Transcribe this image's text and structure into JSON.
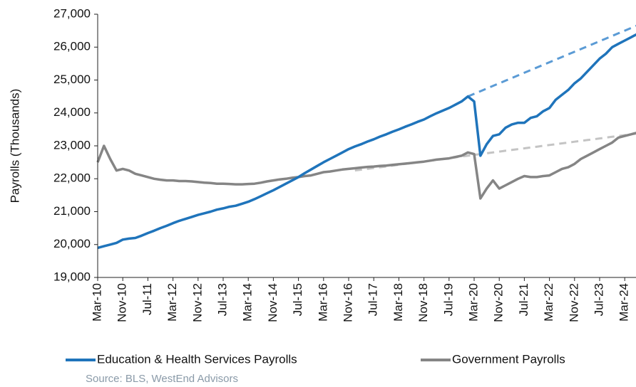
{
  "chart_data": {
    "type": "line",
    "ylabel": "Payrolls (Thousands)",
    "source": "Source: BLS, WestEnd Advisors",
    "categories": [
      "Mar-10",
      null,
      null,
      null,
      "Nov-10",
      null,
      null,
      null,
      "Jul-11",
      null,
      null,
      null,
      "Mar-12",
      null,
      null,
      null,
      "Nov-12",
      null,
      null,
      null,
      "Jul-13",
      null,
      null,
      null,
      "Mar-14",
      null,
      null,
      null,
      "Nov-14",
      null,
      null,
      null,
      "Jul-15",
      null,
      null,
      null,
      "Mar-16",
      null,
      null,
      null,
      "Nov-16",
      null,
      null,
      null,
      "Jul-17",
      null,
      null,
      null,
      "Mar-18",
      null,
      null,
      null,
      "Nov-18",
      null,
      null,
      null,
      "Jul-19",
      null,
      null,
      null,
      "Mar-20",
      null,
      null,
      null,
      "Nov-20",
      null,
      null,
      null,
      "Jul-21",
      null,
      null,
      null,
      "Mar-22",
      null,
      null,
      null,
      "Nov-22",
      null,
      null,
      null,
      "Jul-23",
      null,
      null,
      null,
      "Mar-24",
      null,
      null
    ],
    "ylim": [
      19000,
      27000
    ],
    "yticks": [
      {
        "value": 19000,
        "label": "19,000"
      },
      {
        "value": 20000,
        "label": "20,000"
      },
      {
        "value": 21000,
        "label": "21,000"
      },
      {
        "value": 22000,
        "label": "22,000"
      },
      {
        "value": 23000,
        "label": "23,000"
      },
      {
        "value": 24000,
        "label": "24,000"
      },
      {
        "value": 25000,
        "label": "25,000"
      },
      {
        "value": 26000,
        "label": "26,000"
      },
      {
        "value": 27000,
        "label": "27,000"
      }
    ],
    "grid": false,
    "legend": "bottom",
    "series": [
      {
        "name": "Education & Health Services Payrolls",
        "color": "#1f74bb",
        "values": [
          19900,
          19950,
          20000,
          20050,
          20150,
          20180,
          20200,
          20270,
          20350,
          20420,
          20500,
          20570,
          20650,
          20720,
          20780,
          20840,
          20900,
          20950,
          21000,
          21060,
          21100,
          21150,
          21180,
          21240,
          21300,
          21380,
          21470,
          21560,
          21650,
          21750,
          21850,
          21950,
          22050,
          22170,
          22280,
          22390,
          22500,
          22600,
          22700,
          22800,
          22900,
          22980,
          23050,
          23130,
          23200,
          23280,
          23350,
          23430,
          23500,
          23580,
          23650,
          23730,
          23800,
          23900,
          23990,
          24070,
          24150,
          24250,
          24350,
          24500,
          24350,
          22700,
          23050,
          23300,
          23350,
          23550,
          23650,
          23700,
          23700,
          23850,
          23900,
          24050,
          24150,
          24400,
          24550,
          24700,
          24900,
          25050,
          25250,
          25450,
          25650,
          25800,
          26000,
          26100,
          26200,
          26300,
          26400
        ]
      },
      {
        "name": "Government Payrolls",
        "color": "#858585",
        "values": [
          22500,
          23000,
          22600,
          22250,
          22300,
          22250,
          22150,
          22100,
          22050,
          22000,
          21970,
          21950,
          21950,
          21930,
          21930,
          21920,
          21900,
          21880,
          21870,
          21850,
          21850,
          21840,
          21830,
          21830,
          21840,
          21850,
          21880,
          21920,
          21950,
          21980,
          22000,
          22030,
          22050,
          22080,
          22100,
          22150,
          22200,
          22220,
          22250,
          22280,
          22300,
          22320,
          22340,
          22360,
          22370,
          22390,
          22400,
          22420,
          22440,
          22460,
          22480,
          22500,
          22520,
          22550,
          22580,
          22600,
          22620,
          22660,
          22700,
          22800,
          22750,
          21400,
          21700,
          21950,
          21700,
          21800,
          21900,
          22000,
          22080,
          22050,
          22050,
          22080,
          22100,
          22200,
          22300,
          22350,
          22450,
          22600,
          22700,
          22800,
          22900,
          23000,
          23100,
          23250,
          23300,
          23350,
          23400
        ]
      },
      {
        "color": "#5b9bd5",
        "dashed": true,
        "values": [
          null,
          null,
          null,
          null,
          null,
          null,
          null,
          null,
          null,
          null,
          null,
          null,
          null,
          null,
          null,
          null,
          null,
          null,
          null,
          null,
          null,
          null,
          null,
          null,
          null,
          null,
          null,
          null,
          null,
          null,
          null,
          null,
          null,
          null,
          null,
          null,
          null,
          null,
          null,
          null,
          null,
          null,
          null,
          null,
          null,
          null,
          null,
          null,
          null,
          null,
          null,
          null,
          null,
          null,
          null,
          null,
          null,
          null,
          null,
          24500,
          24580,
          24660,
          24740,
          24820,
          24900,
          24980,
          25060,
          25140,
          25220,
          25300,
          25380,
          25460,
          25540,
          25620,
          25700,
          25780,
          25860,
          25940,
          26020,
          26100,
          26180,
          26260,
          26340,
          26420,
          26500,
          26580,
          26660
        ]
      },
      {
        "color": "#c4c4c4",
        "dashed": true,
        "values": [
          null,
          null,
          null,
          null,
          null,
          null,
          null,
          null,
          null,
          null,
          null,
          null,
          null,
          null,
          null,
          null,
          null,
          null,
          null,
          null,
          null,
          null,
          null,
          null,
          null,
          null,
          null,
          null,
          null,
          null,
          null,
          null,
          null,
          null,
          null,
          null,
          null,
          null,
          null,
          null,
          null,
          22250,
          22275,
          22300,
          22325,
          22350,
          22375,
          22400,
          22425,
          22450,
          22475,
          22500,
          22525,
          22550,
          22575,
          22600,
          22625,
          22650,
          22675,
          22700,
          22725,
          22750,
          22775,
          22800,
          22825,
          22850,
          22875,
          22900,
          22925,
          22950,
          22975,
          23000,
          23025,
          23050,
          23075,
          23100,
          23125,
          23150,
          23175,
          23200,
          23225,
          23250,
          23275,
          23300,
          23325,
          23350,
          23375
        ]
      }
    ]
  }
}
